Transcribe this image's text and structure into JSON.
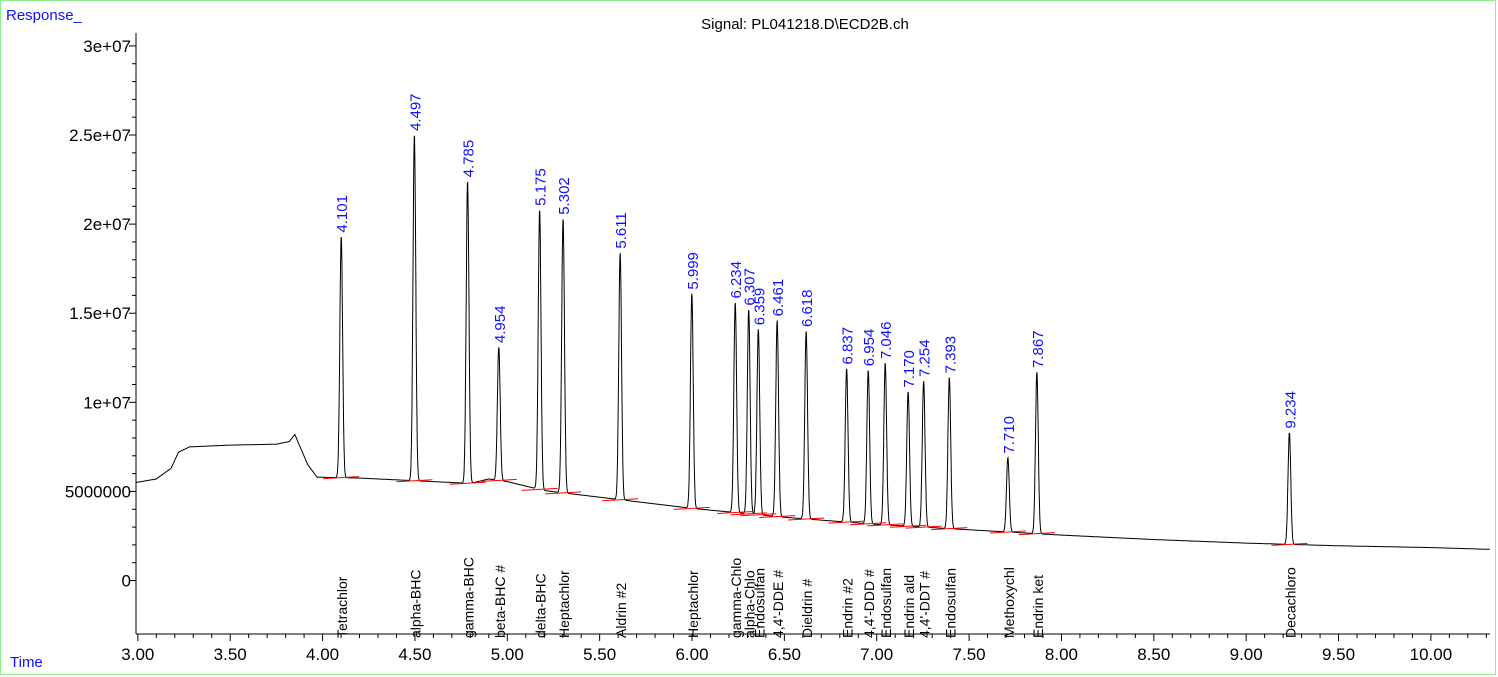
{
  "header": {
    "y_axis_label": "Response_",
    "x_axis_label": "Time",
    "title": "Signal: PL041218.D\\ECD2B.ch"
  },
  "colors": {
    "trace": "#000000",
    "peak_label": "#1010ff",
    "baseline_marker": "#ff0000",
    "frame": "#90ee90"
  },
  "chart_data": {
    "type": "line",
    "title": "Signal: PL041218.D\\ECD2B.ch",
    "xlabel": "Time",
    "ylabel": "Response_",
    "xlim": [
      2.99,
      10.32
    ],
    "ylim": [
      -3000000,
      30500000
    ],
    "x_ticks": [
      "3.00",
      "3.50",
      "4.00",
      "4.50",
      "5.00",
      "5.50",
      "6.00",
      "6.50",
      "7.00",
      "7.50",
      "8.00",
      "8.50",
      "9.00",
      "9.50",
      "10.00"
    ],
    "x_tick_values": [
      3.0,
      3.5,
      4.0,
      4.5,
      5.0,
      5.5,
      6.0,
      6.5,
      7.0,
      7.5,
      8.0,
      8.5,
      9.0,
      9.5,
      10.0
    ],
    "y_ticks": [
      "0",
      "5000000",
      "1e+07",
      "1.5e+07",
      "2e+07",
      "2.5e+07",
      "3e+07"
    ],
    "y_tick_values": [
      0,
      5000000,
      10000000,
      15000000,
      20000000,
      25000000,
      30000000
    ],
    "baseline": [
      [
        2.99,
        5500000
      ],
      [
        3.1,
        5700000
      ],
      [
        3.18,
        6300000
      ],
      [
        3.22,
        7200000
      ],
      [
        3.28,
        7500000
      ],
      [
        3.5,
        7600000
      ],
      [
        3.75,
        7650000
      ],
      [
        3.82,
        7800000
      ],
      [
        3.85,
        8200000
      ],
      [
        3.87,
        7700000
      ],
      [
        3.92,
        6500000
      ],
      [
        3.97,
        5800000
      ],
      [
        4.2,
        5750000
      ],
      [
        4.5,
        5600000
      ],
      [
        4.8,
        5450000
      ],
      [
        4.9,
        5700000
      ],
      [
        5.0,
        5550000
      ],
      [
        5.2,
        5050000
      ],
      [
        5.6,
        4550000
      ],
      [
        6.0,
        4050000
      ],
      [
        6.5,
        3550000
      ],
      [
        7.0,
        3150000
      ],
      [
        7.5,
        2850000
      ],
      [
        8.0,
        2550000
      ],
      [
        8.5,
        2300000
      ],
      [
        9.0,
        2100000
      ],
      [
        9.5,
        1950000
      ],
      [
        10.0,
        1850000
      ],
      [
        10.32,
        1750000
      ]
    ],
    "peaks": [
      {
        "rt": "4.101",
        "x": 4.101,
        "apex": 19300000,
        "compound": "Tetrachlor"
      },
      {
        "rt": "4.497",
        "x": 4.497,
        "apex": 25000000,
        "compound": "alpha-BHC"
      },
      {
        "rt": "4.785",
        "x": 4.785,
        "apex": 22400000,
        "compound": "gamma-BHC"
      },
      {
        "rt": "4.954",
        "x": 4.954,
        "apex": 13100000,
        "compound": "beta-BHC #"
      },
      {
        "rt": "5.175",
        "x": 5.175,
        "apex": 20800000,
        "compound": "delta-BHC"
      },
      {
        "rt": "5.302",
        "x": 5.302,
        "apex": 20300000,
        "compound": "Heptachlor"
      },
      {
        "rt": "5.611",
        "x": 5.611,
        "apex": 18400000,
        "compound": "Aldrin #2"
      },
      {
        "rt": "5.999",
        "x": 5.999,
        "apex": 16100000,
        "compound": "Heptachlor"
      },
      {
        "rt": "6.234",
        "x": 6.234,
        "apex": 15600000,
        "compound": "gamma-Chlo"
      },
      {
        "rt": "6.307",
        "x": 6.307,
        "apex": 15200000,
        "compound": "alpha-Chlo"
      },
      {
        "rt": "6.359",
        "x": 6.359,
        "apex": 14100000,
        "compound": "Endosulfan"
      },
      {
        "rt": "6.461",
        "x": 6.461,
        "apex": 14600000,
        "compound": "4,4'-DDE #"
      },
      {
        "rt": "6.618",
        "x": 6.618,
        "apex": 14000000,
        "compound": "Dieldrin #"
      },
      {
        "rt": "6.837",
        "x": 6.837,
        "apex": 11900000,
        "compound": "Endrin #2"
      },
      {
        "rt": "6.954",
        "x": 6.954,
        "apex": 11800000,
        "compound": "4,4'-DDD #"
      },
      {
        "rt": "7.046",
        "x": 7.046,
        "apex": 12200000,
        "compound": "Endosulfan"
      },
      {
        "rt": "7.170",
        "x": 7.17,
        "apex": 10600000,
        "compound": "Endrin ald"
      },
      {
        "rt": "7.254",
        "x": 7.254,
        "apex": 11200000,
        "compound": "4,4'-DDT #"
      },
      {
        "rt": "7.393",
        "x": 7.393,
        "apex": 11400000,
        "compound": "Endosulfan"
      },
      {
        "rt": "7.710",
        "x": 7.71,
        "apex": 6900000,
        "compound": "Methoxychl"
      },
      {
        "rt": "7.867",
        "x": 7.867,
        "apex": 11700000,
        "compound": "Endrin ket"
      },
      {
        "rt": "9.234",
        "x": 9.234,
        "apex": 8300000,
        "compound": "Decachloro"
      }
    ]
  }
}
